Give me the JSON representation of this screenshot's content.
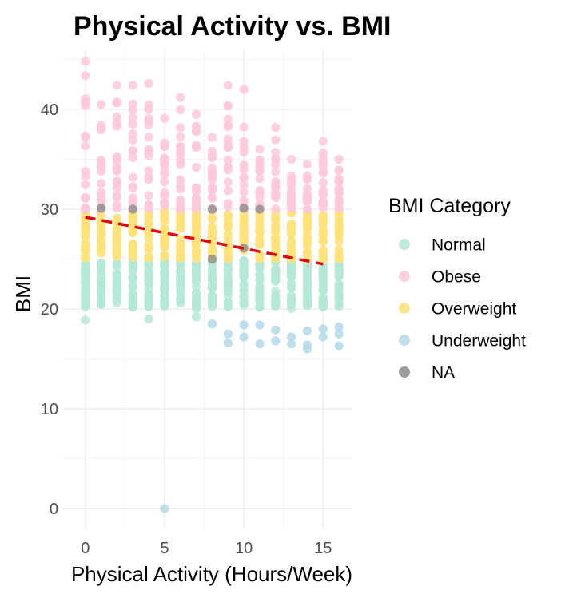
{
  "chart_data": {
    "type": "scatter",
    "title": "Physical Activity vs. BMI",
    "xlabel": "Physical Activity (Hours/Week)",
    "ylabel": "BMI",
    "xlim": [
      -1.5,
      16.8
    ],
    "ylim": [
      -2.0,
      46.0
    ],
    "x_ticks": [
      0,
      5,
      10,
      15
    ],
    "y_ticks": [
      0,
      10,
      20,
      30,
      40
    ],
    "grid": true,
    "legend": {
      "title": "BMI Category",
      "placement": "right",
      "entries": [
        {
          "label": "Normal",
          "color": "#b3e8d6"
        },
        {
          "label": "Obese",
          "color": "#ffc8da"
        },
        {
          "label": "Overweight",
          "color": "#ffe27a"
        },
        {
          "label": "Underweight",
          "color": "#b3d9e8"
        },
        {
          "label": "NA",
          "color": "#8c8c8c"
        }
      ]
    },
    "trend_line": {
      "color": "#e8000b",
      "style": "dashed",
      "x": [
        0,
        15
      ],
      "y": [
        29.2,
        24.5
      ]
    },
    "series": [
      {
        "name": "Normal",
        "color": "#b3e8d6",
        "x_values": [
          0,
          1,
          2,
          3,
          4,
          5,
          6,
          7,
          8,
          9,
          10,
          11,
          12,
          13,
          14,
          15,
          16
        ],
        "y_min": 18.9,
        "y_max": 24.9
      },
      {
        "name": "Obese",
        "color": "#ffc8da",
        "x_values": [
          0,
          1,
          2,
          3,
          4,
          5,
          6,
          7,
          8,
          9,
          10,
          11,
          12,
          13,
          14,
          15,
          16
        ],
        "y_min": 30.0,
        "y_max_by_x": [
          44.8,
          40.5,
          42.4,
          42.4,
          42.6,
          39.1,
          41.2,
          39.5,
          37.2,
          42.4,
          42.0,
          36.0,
          38.2,
          35.0,
          34.5,
          36.8,
          35.0
        ]
      },
      {
        "name": "Overweight",
        "color": "#ffe27a",
        "x_values": [
          0,
          1,
          2,
          3,
          4,
          5,
          6,
          7,
          8,
          9,
          10,
          11,
          12,
          13,
          14,
          15,
          16
        ],
        "y_min": 25.0,
        "y_max": 29.9
      },
      {
        "name": "Underweight",
        "color": "#b3d9e8",
        "points": [
          [
            5,
            0
          ],
          [
            8,
            18.5
          ],
          [
            9,
            17.5
          ],
          [
            9,
            16.6
          ],
          [
            10,
            17.2
          ],
          [
            10,
            18.4
          ],
          [
            11,
            18.4
          ],
          [
            11,
            16.5
          ],
          [
            12,
            17.9
          ],
          [
            12,
            16.8
          ],
          [
            13,
            17.2
          ],
          [
            13,
            16.5
          ],
          [
            14,
            16.0
          ],
          [
            14,
            17.8
          ],
          [
            14,
            16.4
          ],
          [
            15,
            17.2
          ],
          [
            15,
            18.0
          ],
          [
            16,
            16.3
          ],
          [
            16,
            17.5
          ],
          [
            16,
            18.2
          ]
        ]
      },
      {
        "name": "NA",
        "color": "#8c8c8c",
        "points": [
          [
            1,
            30.1
          ],
          [
            3,
            30.0
          ],
          [
            8,
            30.0
          ],
          [
            8,
            25.0
          ],
          [
            10,
            30.1
          ],
          [
            10,
            26.1
          ],
          [
            11,
            30.0
          ]
        ]
      }
    ]
  }
}
